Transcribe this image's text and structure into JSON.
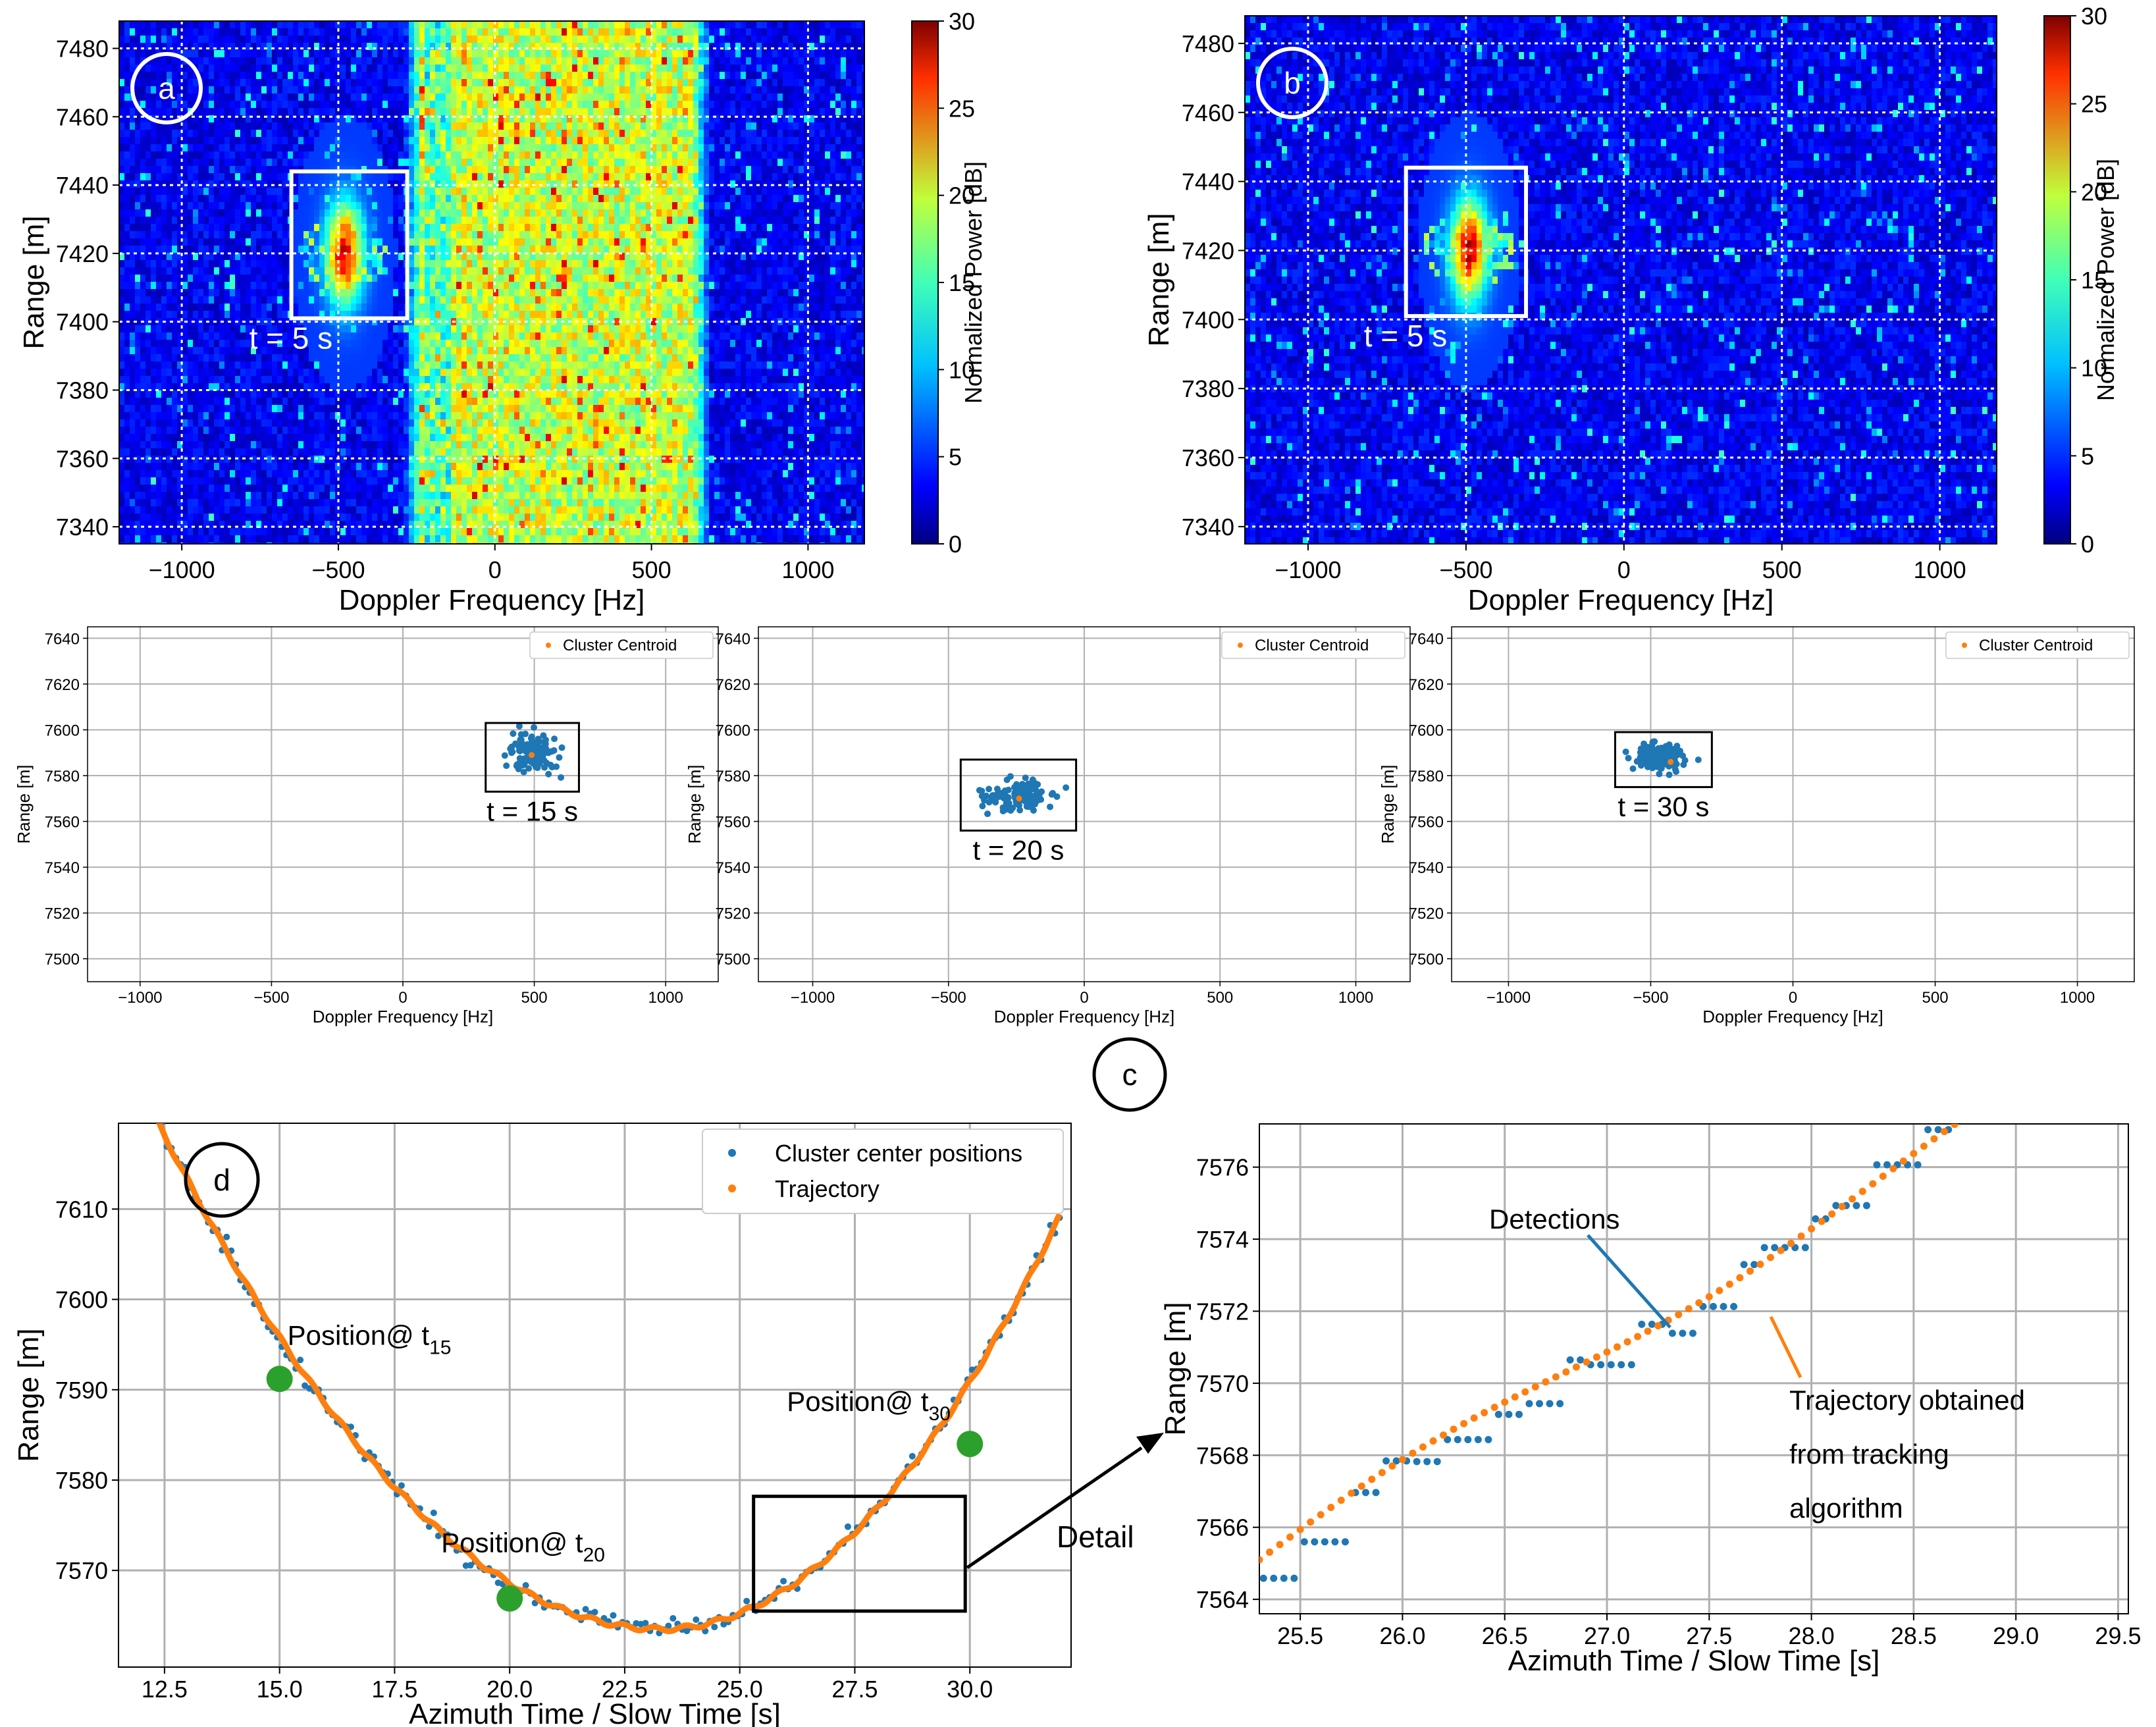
{
  "chart_data": [
    {
      "panel": "a",
      "type": "heatmap",
      "label": "a",
      "xlabel": "Doppler Frequency [Hz]",
      "ylabel": "Range [m]",
      "xlim": [
        -1200,
        1180
      ],
      "ylim": [
        7335,
        7488
      ],
      "xticks": [
        -1000,
        -500,
        0,
        500,
        1000
      ],
      "yticks": [
        7340,
        7360,
        7380,
        7400,
        7420,
        7440,
        7460,
        7480
      ],
      "colorbar_label": "Normalized Power [dB]",
      "colorbar_range": [
        0,
        30
      ],
      "colorbar_ticks": [
        0,
        5,
        10,
        15,
        20,
        25,
        30
      ],
      "clutter_band_hz": [
        -230,
        630
      ],
      "target": {
        "doppler_hz": -480,
        "range_m": 7420
      },
      "box": {
        "x": [
          -650,
          -280
        ],
        "y": [
          7401,
          7444
        ],
        "annotation": "t = 5 s"
      },
      "grid": true
    },
    {
      "panel": "b",
      "type": "heatmap",
      "label": "b",
      "xlabel": "Doppler Frequency [Hz]",
      "ylabel": "Range [m]",
      "xlim": [
        -1200,
        1180
      ],
      "ylim": [
        7335,
        7488
      ],
      "xticks": [
        -1000,
        -500,
        0,
        500,
        1000
      ],
      "yticks": [
        7340,
        7360,
        7380,
        7400,
        7420,
        7440,
        7460,
        7480
      ],
      "colorbar_label": "Normalized Power [dB]",
      "colorbar_range": [
        0,
        30
      ],
      "colorbar_ticks": [
        0,
        5,
        10,
        15,
        20,
        25,
        30
      ],
      "target": {
        "doppler_hz": -490,
        "range_m": 7420
      },
      "box": {
        "x": [
          -690,
          -310
        ],
        "y": [
          7401,
          7444
        ],
        "annotation": "t = 5 s"
      },
      "grid": true
    },
    {
      "panel": "c1",
      "type": "scatter",
      "xlabel": "Doppler Frequency [Hz]",
      "ylabel": "Range [m]",
      "xlim": [
        -1200,
        1200
      ],
      "ylim": [
        7490,
        7645
      ],
      "xticks": [
        -1000,
        -500,
        0,
        500,
        1000
      ],
      "yticks": [
        7500,
        7520,
        7540,
        7560,
        7580,
        7600,
        7620,
        7640
      ],
      "legend": [
        "Cluster Centroid"
      ],
      "cluster": {
        "center": [
          490,
          7590
        ],
        "spread": [
          60,
          8
        ]
      },
      "centroid": [
        490,
        7589
      ],
      "box": {
        "x": [
          315,
          670
        ],
        "y": [
          7573,
          7603
        ],
        "annotation": "t = 15 s"
      }
    },
    {
      "panel": "c2",
      "type": "scatter",
      "xlabel": "Doppler Frequency [Hz]",
      "ylabel": "Range [m]",
      "xlim": [
        -1200,
        1200
      ],
      "ylim": [
        7490,
        7645
      ],
      "xticks": [
        -1000,
        -500,
        0,
        500,
        1000
      ],
      "yticks": [
        7500,
        7520,
        7540,
        7560,
        7580,
        7600,
        7620,
        7640
      ],
      "legend": [
        "Cluster Centroid"
      ],
      "cluster": {
        "center": [
          -245,
          7571
        ],
        "spread": [
          85,
          6
        ]
      },
      "centroid": [
        -240,
        7570
      ],
      "box": {
        "x": [
          -455,
          -30
        ],
        "y": [
          7556,
          7587
        ],
        "annotation": "t = 20 s"
      }
    },
    {
      "panel": "c3",
      "type": "scatter",
      "xlabel": "Doppler Frequency [Hz]",
      "ylabel": "Range [m]",
      "xlim": [
        -1200,
        1200
      ],
      "ylim": [
        7490,
        7645
      ],
      "xticks": [
        -1000,
        -500,
        0,
        500,
        1000
      ],
      "yticks": [
        7500,
        7520,
        7540,
        7560,
        7580,
        7600,
        7620,
        7640
      ],
      "legend": [
        "Cluster Centroid"
      ],
      "cluster": {
        "center": [
          -470,
          7588
        ],
        "spread": [
          55,
          5
        ]
      },
      "centroid": [
        -430,
        7586
      ],
      "box": {
        "x": [
          -625,
          -285
        ],
        "y": [
          7575,
          7599
        ],
        "annotation": "t = 30 s"
      }
    },
    {
      "panel": "d",
      "type": "line",
      "label": "d",
      "xlabel": "Azimuth Time / Slow Time [s]",
      "ylabel": "Range [m]",
      "xlim": [
        11.5,
        32.2
      ],
      "ylim": [
        7559.3,
        7619.5
      ],
      "xticks": [
        12.5,
        15.0,
        17.5,
        20.0,
        22.5,
        25.0,
        27.5,
        30.0
      ],
      "yticks": [
        7570,
        7580,
        7590,
        7600,
        7610
      ],
      "series": [
        {
          "name": "Cluster center positions",
          "color": "#1f77b4",
          "kind": "scatter"
        },
        {
          "name": "Trajectory",
          "color": "#ff7f0e",
          "kind": "line"
        }
      ],
      "trajectory_model": {
        "vertex_t": 23.3,
        "vertex_range": 7563.5,
        "a_left": 0.4685,
        "a_right": 0.6105
      },
      "positions": [
        {
          "t": 15.0,
          "range": 7591.2,
          "label": "Position@ t",
          "sub": "15"
        },
        {
          "t": 20.0,
          "range": 7566.9,
          "label": "Position@ t",
          "sub": "20"
        },
        {
          "t": 30.0,
          "range": 7584.0,
          "label": "Position@ t",
          "sub": "30"
        }
      ],
      "detail_box": {
        "x": [
          25.3,
          29.9
        ],
        "y": [
          7565.5,
          7578.2
        ]
      },
      "detail_label": "Detail"
    },
    {
      "panel": "d-detail",
      "type": "scatter",
      "xlabel": "Azimuth Time / Slow Time [s]",
      "ylabel": "Range [m]",
      "xlim": [
        25.3,
        29.55
      ],
      "ylim": [
        7563.6,
        7577.2
      ],
      "xticks": [
        25.5,
        26.0,
        26.5,
        27.0,
        27.5,
        28.0,
        28.5,
        29.0,
        29.5
      ],
      "yticks": [
        7564,
        7566,
        7568,
        7570,
        7572,
        7574,
        7576
      ],
      "trajectory": {
        "t_start": 25.3,
        "t_end": 28.78,
        "r_start": 7565.1,
        "r_end": 7577.2,
        "step": 0.05
      },
      "annotations": {
        "detections": "Detections",
        "trajectory": [
          "Trajectory obtained",
          "from tracking",
          "algorithm"
        ]
      }
    }
  ],
  "panel_c_label": "c",
  "colors": {
    "detections": "#1f77b4",
    "trajectory": "#ff7f0e",
    "position_marker": "#2ca02c"
  }
}
